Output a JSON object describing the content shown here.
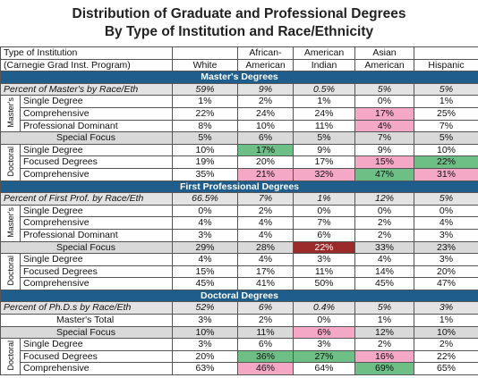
{
  "title": [
    "Distribution of Graduate and Professional Degrees",
    "By Type of Institution and Race/Ethnicity"
  ],
  "columns": [
    {
      "lines": [
        "Type of Institution",
        "(Carnegie Grad Inst. Program)"
      ]
    },
    {
      "lines": [
        "White"
      ]
    },
    {
      "lines": [
        "African-",
        "American"
      ]
    },
    {
      "lines": [
        "American",
        "Indian"
      ]
    },
    {
      "lines": [
        "Asian",
        "American"
      ]
    },
    {
      "lines": [
        "Hispanic"
      ]
    }
  ],
  "sections": [
    {
      "title": "Master's Degrees",
      "summary": {
        "label": "Percent of Master's by Race/Eth",
        "values": [
          "59%",
          "9%",
          "0.5%",
          "5%",
          "5%"
        ]
      },
      "items": [
        {
          "group": "Master's",
          "rows": [
            {
              "label": "Single Degree",
              "values": [
                "1%",
                "2%",
                "1%",
                "0%",
                "1%"
              ]
            },
            {
              "label": "Comprehensive",
              "values": [
                "22%",
                "24%",
                "24%",
                "17%",
                "25%"
              ],
              "colors": [
                null,
                null,
                null,
                "#f4a8c6",
                null
              ]
            },
            {
              "label": "Professional Dominant",
              "values": [
                "8%",
                "10%",
                "11%",
                "4%",
                "7%"
              ],
              "colors": [
                null,
                null,
                null,
                "#f4a8c6",
                null
              ]
            }
          ]
        },
        {
          "label": "Special Focus",
          "values": [
            "5%",
            "6%",
            "5%",
            "7%",
            "5%"
          ],
          "shade": "#d9d9d9"
        },
        {
          "group": "Doctoral",
          "rows": [
            {
              "label": "Single Degree",
              "values": [
                "10%",
                "17%",
                "9%",
                "9%",
                "10%"
              ],
              "colors": [
                null,
                "#6dbf86",
                null,
                null,
                null
              ]
            },
            {
              "label": "Focused Degrees",
              "values": [
                "19%",
                "20%",
                "17%",
                "15%",
                "22%"
              ],
              "colors": [
                null,
                null,
                null,
                "#f4a8c6",
                "#6dbf86"
              ]
            },
            {
              "label": "Comprehensive",
              "values": [
                "35%",
                "21%",
                "32%",
                "47%",
                "31%"
              ],
              "colors": [
                null,
                "#f4a8c6",
                "#f4a8c6",
                "#6dbf86",
                "#f4a8c6"
              ]
            }
          ]
        }
      ]
    },
    {
      "title": "First Professional Degrees",
      "summary": {
        "label": "Percent of First Prof. by Race/Eth",
        "values": [
          "66.5%",
          "7%",
          "1%",
          "12%",
          "5%"
        ]
      },
      "items": [
        {
          "group": "Master's",
          "rows": [
            {
              "label": "Single Degree",
              "values": [
                "0%",
                "2%",
                "0%",
                "0%",
                "0%"
              ]
            },
            {
              "label": "Comprehensive",
              "values": [
                "4%",
                "4%",
                "7%",
                "2%",
                "4%"
              ]
            },
            {
              "label": "Professional Dominant",
              "values": [
                "3%",
                "4%",
                "6%",
                "2%",
                "3%"
              ]
            }
          ]
        },
        {
          "label": "Special Focus",
          "values": [
            "29%",
            "28%",
            "22%",
            "33%",
            "23%"
          ],
          "shade": "#d9d9d9",
          "colors": [
            null,
            null,
            "#9b2b2b",
            null,
            null
          ]
        },
        {
          "group": "Doctoral",
          "rows": [
            {
              "label": "Single Degree",
              "values": [
                "4%",
                "4%",
                "3%",
                "4%",
                "3%"
              ]
            },
            {
              "label": "Focused Degrees",
              "values": [
                "15%",
                "17%",
                "11%",
                "14%",
                "20%"
              ]
            },
            {
              "label": "Comprehensive",
              "values": [
                "45%",
                "41%",
                "50%",
                "45%",
                "47%"
              ]
            }
          ]
        }
      ]
    },
    {
      "title": "Doctoral Degrees",
      "summary": {
        "label": "Percent of Ph.D.s by Race/Eth",
        "values": [
          "52%",
          "6%",
          "0.4%",
          "5%",
          "3%"
        ]
      },
      "items": [
        {
          "label": "Master's Total",
          "values": [
            "3%",
            "2%",
            "0%",
            "1%",
            "1%"
          ]
        },
        {
          "label": "Special Focus",
          "values": [
            "10%",
            "11%",
            "6%",
            "12%",
            "10%"
          ],
          "shade": "#d9d9d9",
          "colors": [
            null,
            null,
            "#f4a8c6",
            null,
            null
          ]
        },
        {
          "group": "Doctoral",
          "rows": [
            {
              "label": "Single Degree",
              "values": [
                "3%",
                "6%",
                "3%",
                "2%",
                "2%"
              ]
            },
            {
              "label": "Focused Degrees",
              "values": [
                "20%",
                "36%",
                "27%",
                "16%",
                "22%"
              ],
              "colors": [
                null,
                "#6dbf86",
                "#6dbf86",
                "#f4a8c6",
                null
              ]
            },
            {
              "label": "Comprehensive",
              "values": [
                "63%",
                "46%",
                "64%",
                "69%",
                "65%"
              ],
              "colors": [
                null,
                "#f4a8c6",
                null,
                "#6dbf86",
                null
              ]
            }
          ]
        }
      ]
    }
  ]
}
